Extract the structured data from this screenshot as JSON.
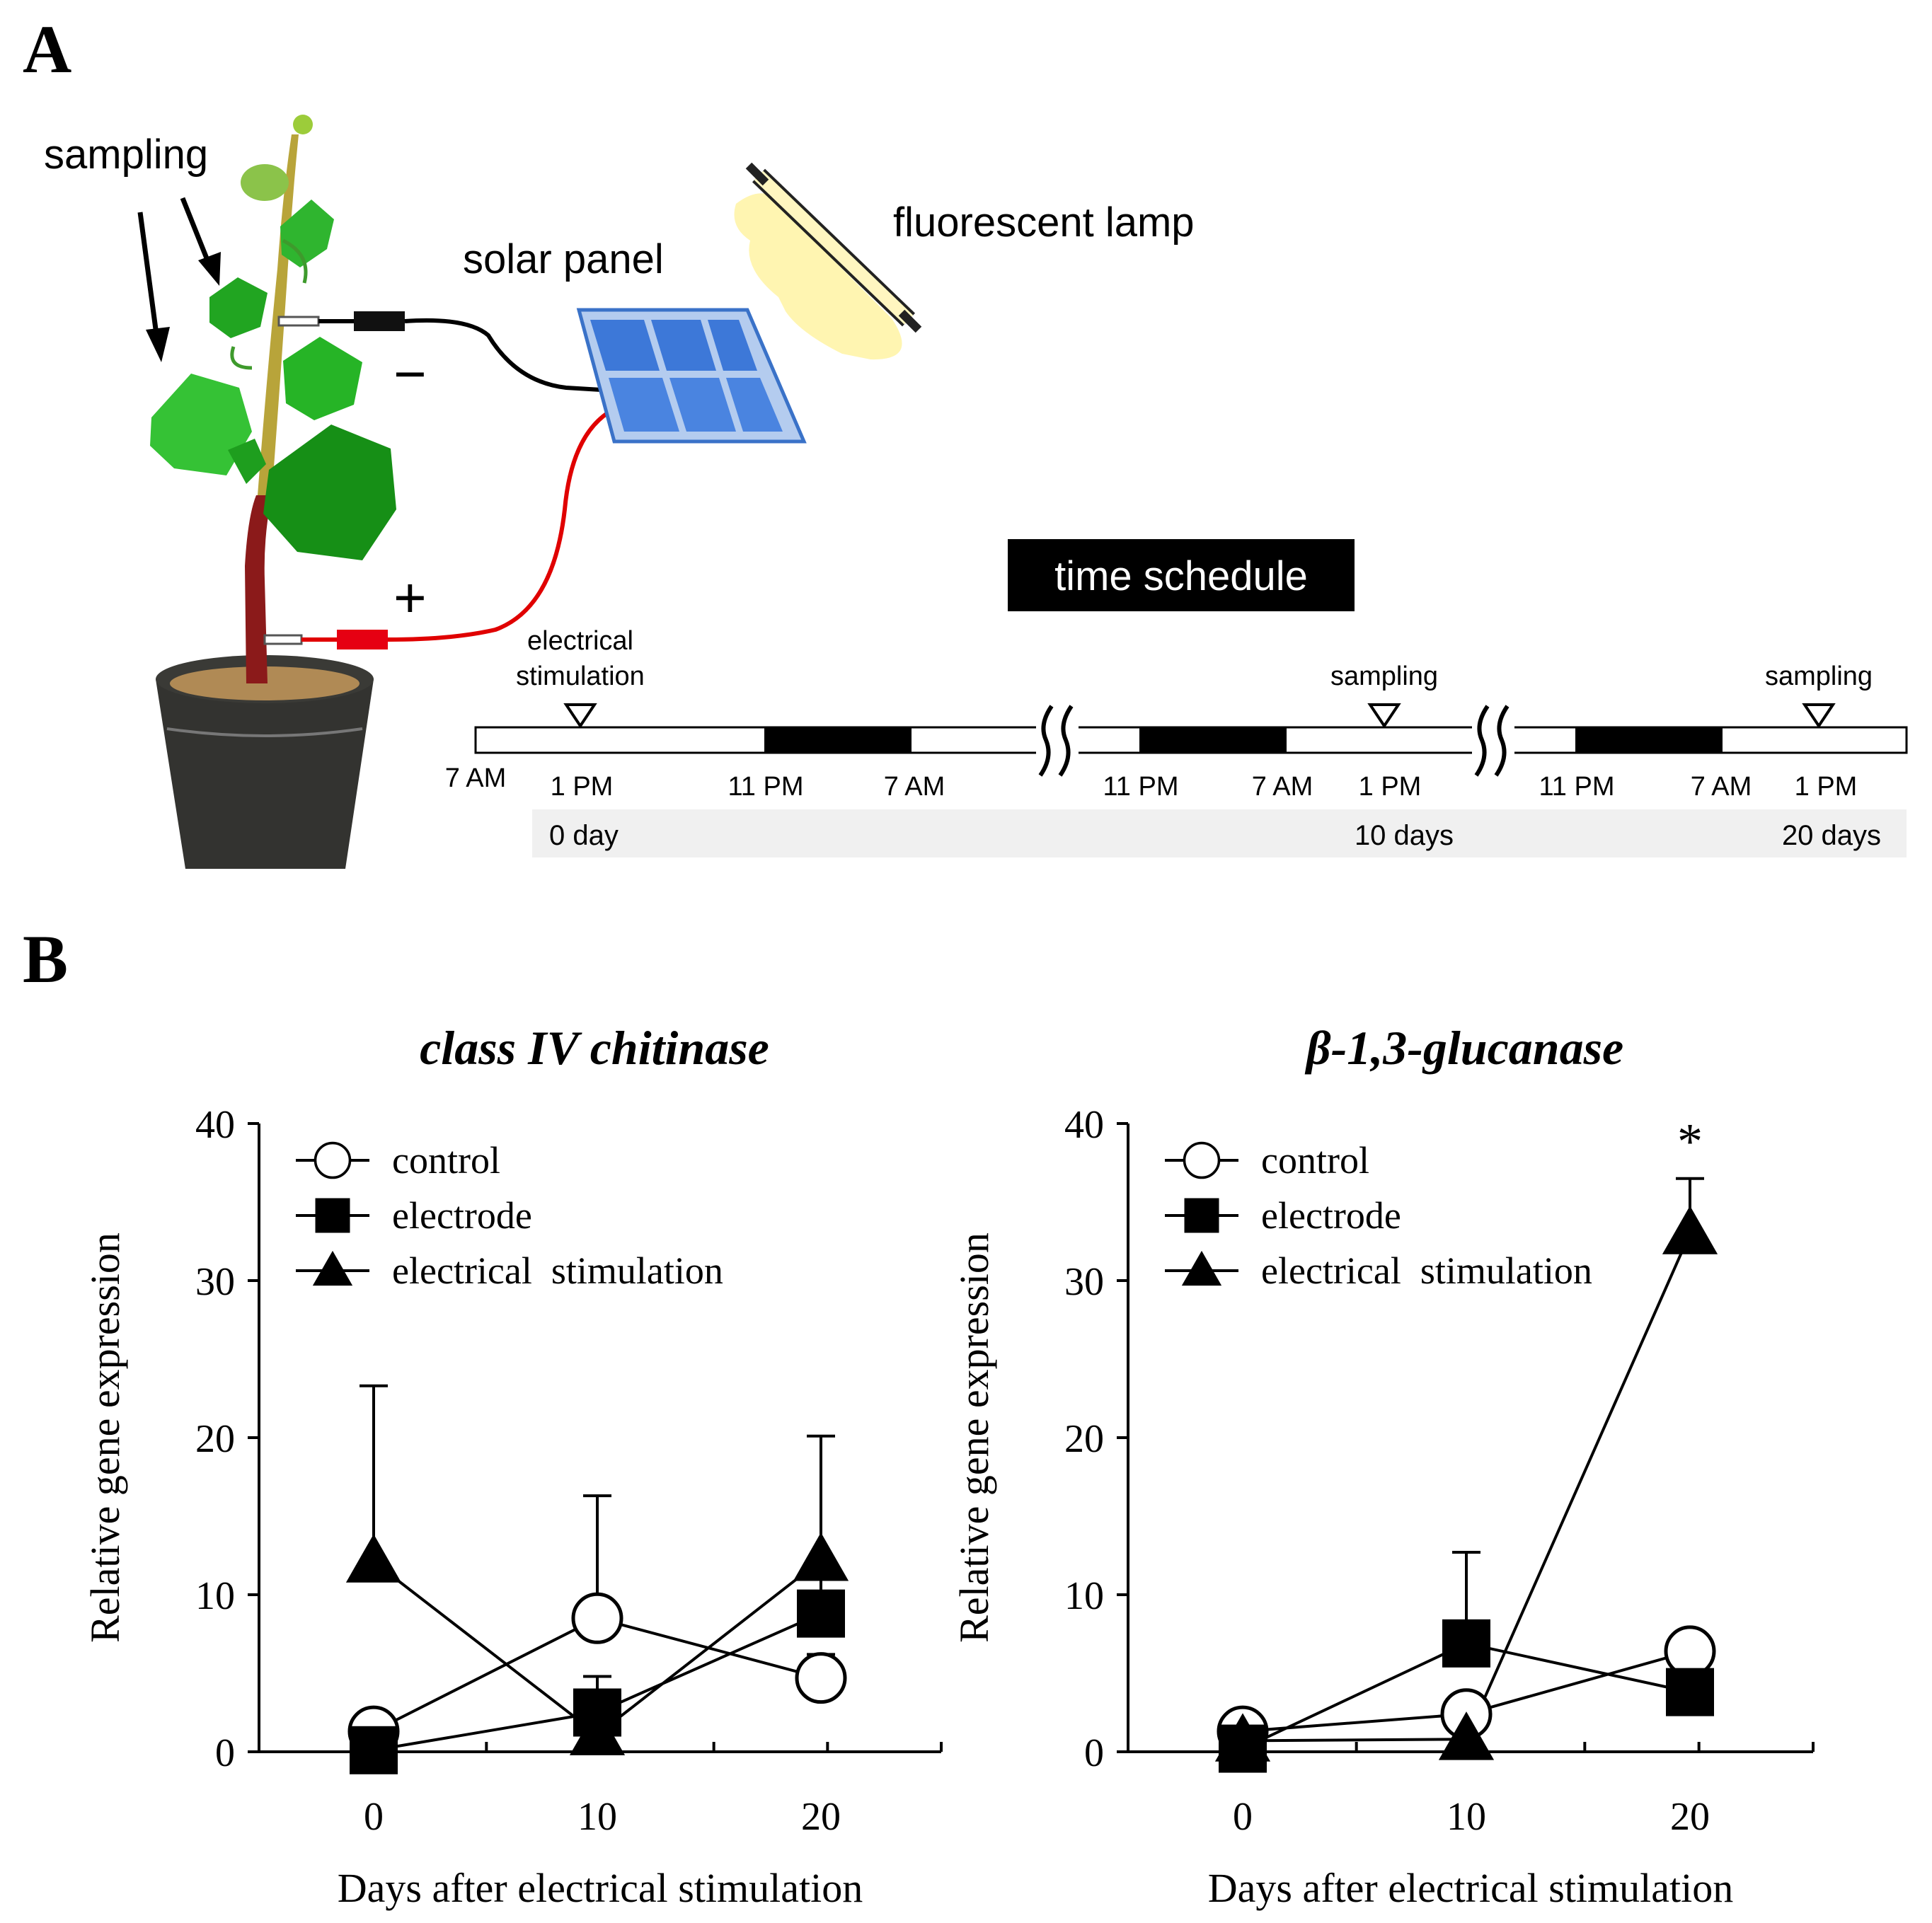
{
  "panel_a": {
    "letter": "A",
    "labels": {
      "sampling": "sampling",
      "solar_panel": "solar panel",
      "fluorescent_lamp": "fluorescent lamp",
      "minus": "−",
      "plus": "+"
    },
    "schedule": {
      "title": "time schedule",
      "stimulation_line1": "electrical",
      "stimulation_line2": "stimulation",
      "sampling_1": "sampling",
      "sampling_2": "sampling",
      "times": [
        "7 AM",
        "1 PM",
        "11 PM",
        "7 AM",
        "11 PM",
        "7 AM",
        "1 PM",
        "11 PM",
        "7 AM",
        "1 PM"
      ],
      "days": [
        "0 day",
        "10 days",
        "20 days"
      ]
    }
  },
  "panel_b": {
    "letter": "B"
  },
  "chart_data": [
    {
      "type": "line",
      "title": "class IV chitinase",
      "xlabel": "Days after electrical stimulation",
      "ylabel": "Relative gene expression",
      "x": [
        0,
        10,
        20
      ],
      "xticks": [
        "0",
        "10",
        "20"
      ],
      "yticks": [
        "0",
        "10",
        "20",
        "30",
        "40"
      ],
      "ylim": [
        0,
        40
      ],
      "legend_position": "top-left",
      "series": [
        {
          "name": "control",
          "marker": "circle-open",
          "values": [
            1.3,
            8.5,
            4.7
          ],
          "err": [
            0,
            7.8,
            1.5
          ]
        },
        {
          "name": "electrode",
          "marker": "square-filled",
          "values": [
            0.1,
            2.5,
            8.8
          ],
          "err": [
            0,
            2.3,
            2.6
          ]
        },
        {
          "name": "electrical  stimulation",
          "marker": "triangle-filled",
          "values": [
            12.1,
            1.1,
            12.2
          ],
          "err": [
            11.2,
            0,
            7.9
          ]
        }
      ]
    },
    {
      "type": "line",
      "title": "β-1,3-glucanase",
      "xlabel": "Days after electrical stimulation",
      "ylabel": "Relative gene expression",
      "x": [
        0,
        10,
        20
      ],
      "xticks": [
        "0",
        "10",
        "20"
      ],
      "yticks": [
        "0",
        "10",
        "20",
        "30",
        "40"
      ],
      "ylim": [
        0,
        40
      ],
      "legend_position": "top-left",
      "annotation": "*",
      "series": [
        {
          "name": "control",
          "marker": "circle-open",
          "values": [
            1.3,
            2.4,
            6.4
          ],
          "err": [
            0,
            0,
            0
          ]
        },
        {
          "name": "electrode",
          "marker": "square-filled",
          "values": [
            0.2,
            6.9,
            3.8
          ],
          "err": [
            0,
            5.8,
            2.0
          ]
        },
        {
          "name": "electrical  stimulation",
          "marker": "triangle-filled",
          "values": [
            0.7,
            0.8,
            33.0
          ],
          "err": [
            0,
            0,
            3.5
          ]
        }
      ]
    }
  ]
}
